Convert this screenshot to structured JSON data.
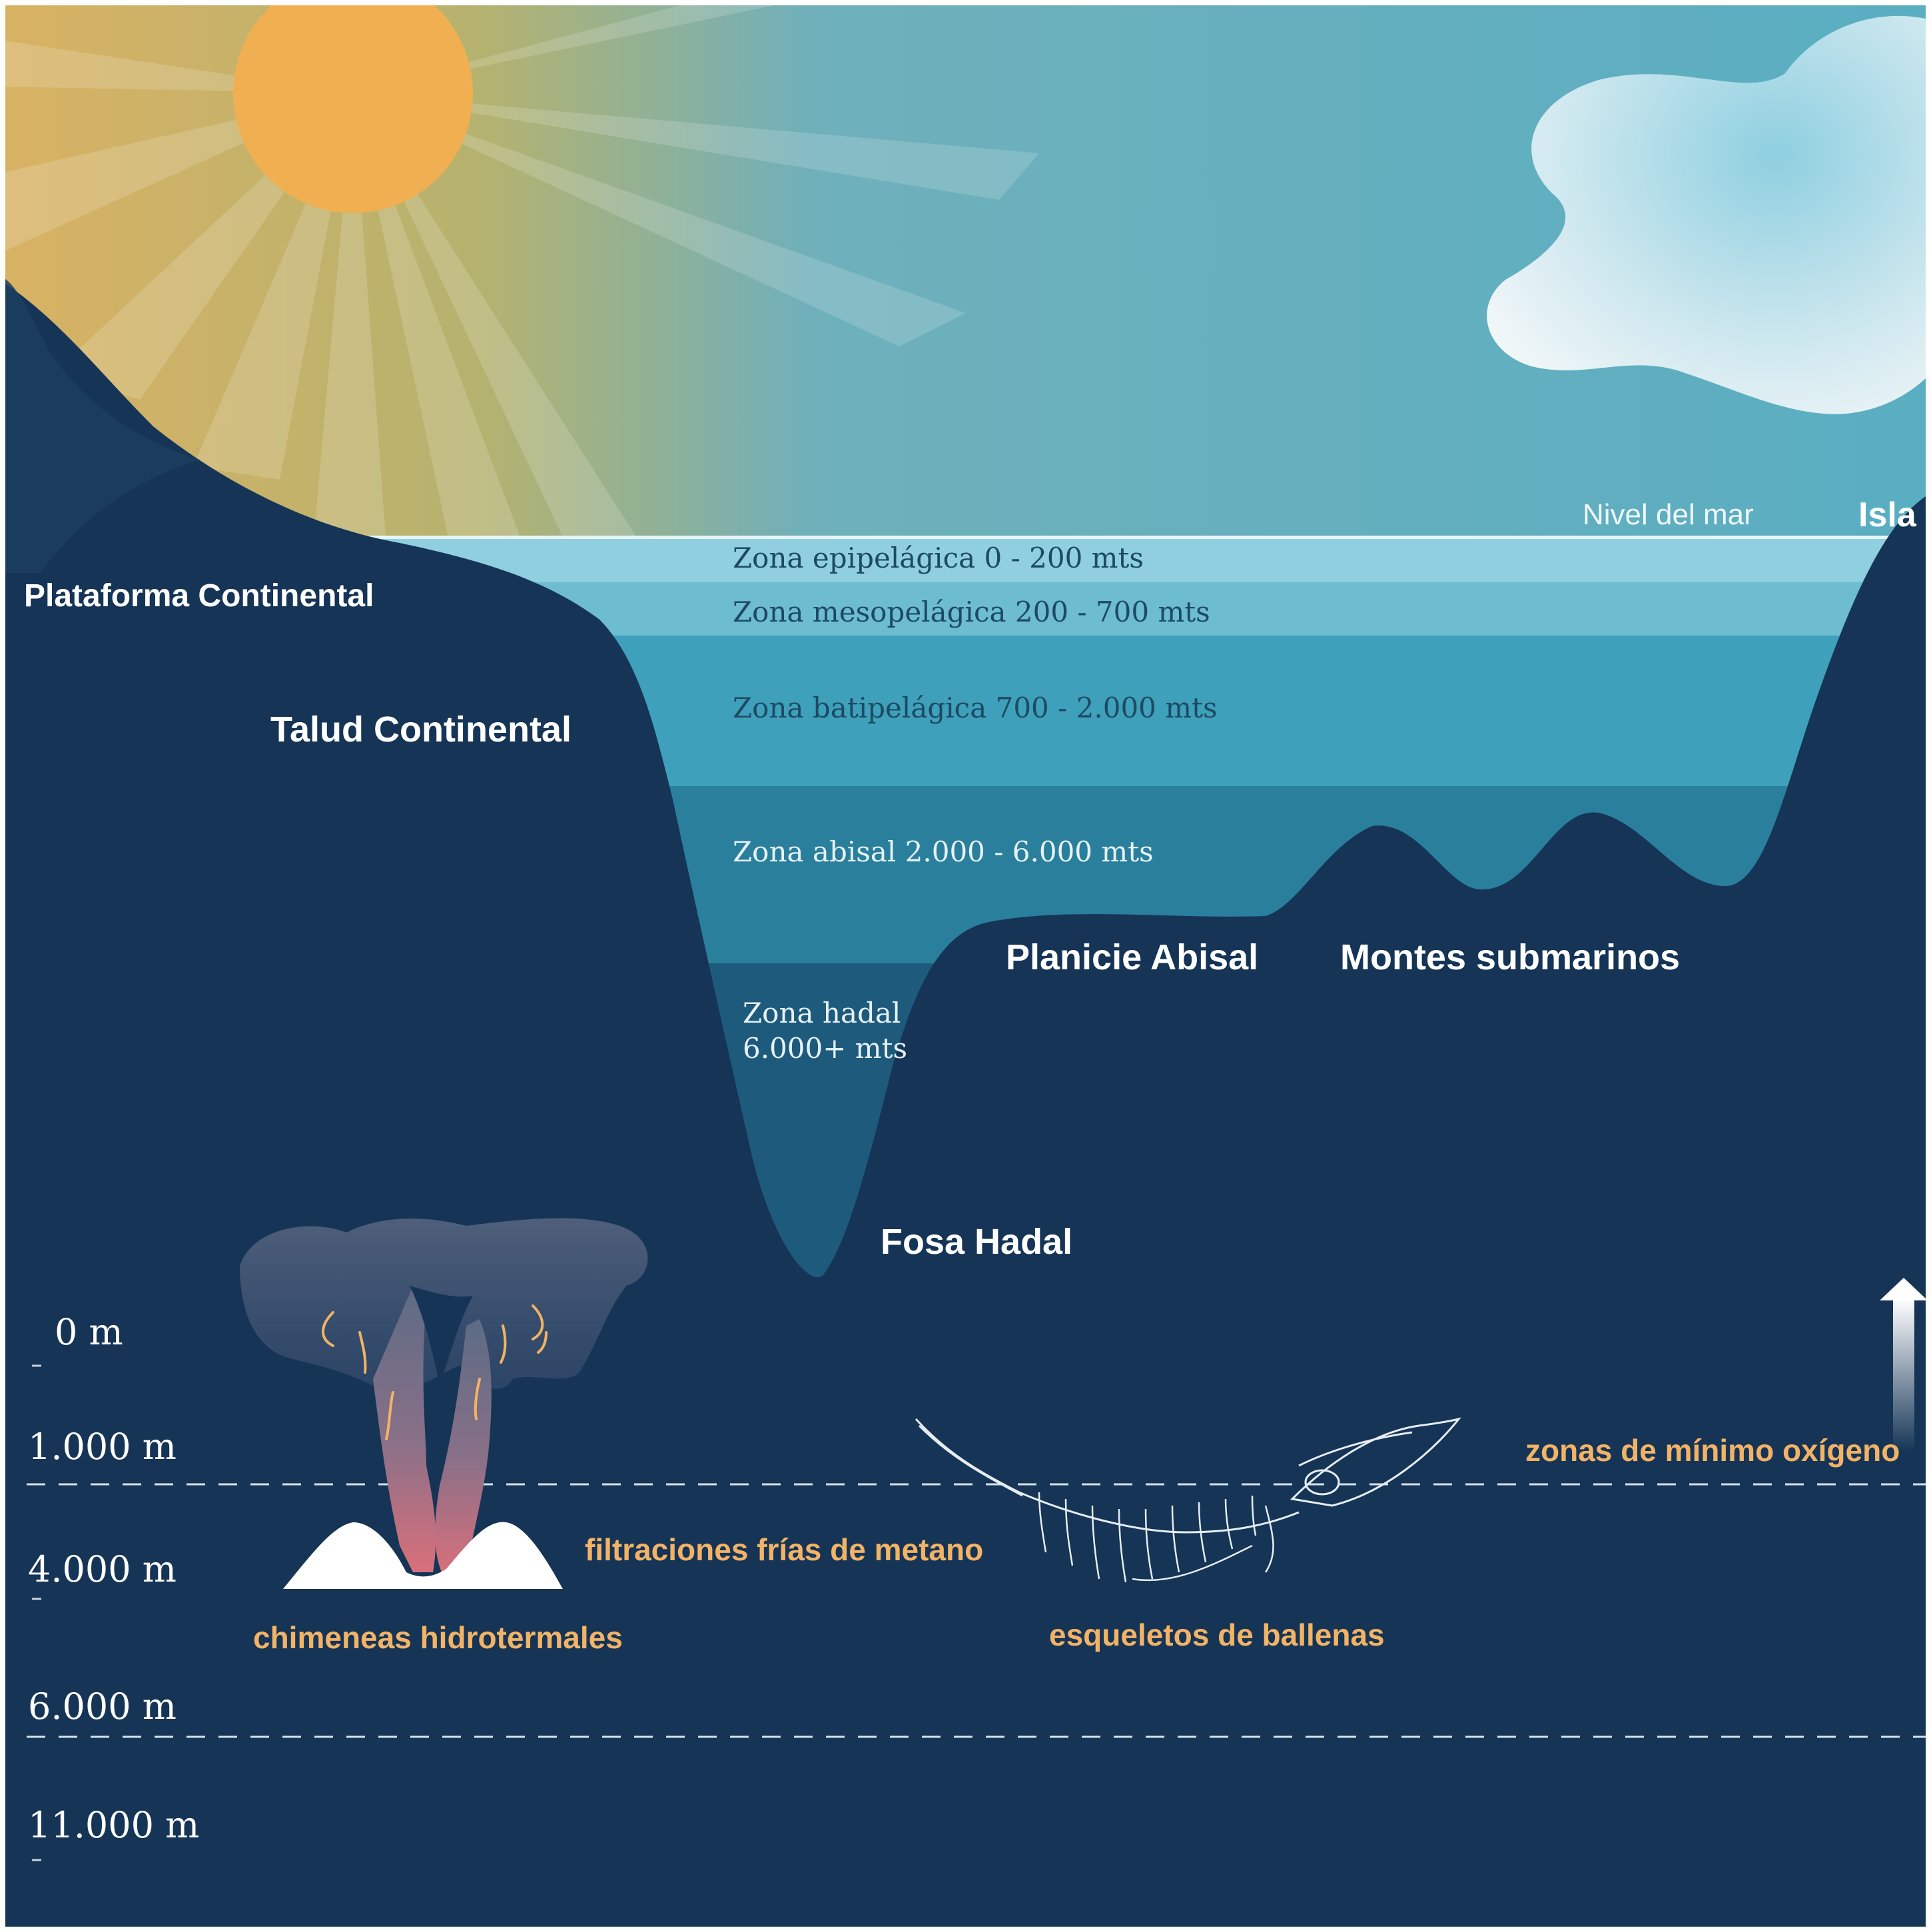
{
  "colors": {
    "sky": "#5fb0c2",
    "deep": "#153456",
    "sun": "#f0b050",
    "accent_text": "#f2b366",
    "zone_epi": "#8fcfe0",
    "zone_meso": "#6dbcd0",
    "zone_bati": "#3ea0ba",
    "zone_abisal": "#2a7f9c",
    "zone_hadal": "#1e5a7c"
  },
  "labels": {
    "sea_level": "Nivel del mar",
    "island": "Isla",
    "continental_platform": "Plataforma Continental",
    "continental_slope": "Talud Continental",
    "abyssal_plain": "Planicie Abisal",
    "seamounts": "Montes submarinos",
    "hadal_trench": "Fosa Hadal"
  },
  "zones": {
    "epipelagic": "Zona epipelágica 0 - 200 mts",
    "mesopelagic": "Zona mesopelágica 200 - 700 mts",
    "bathypelagic": "Zona batipelágica 700 - 2.000 mts",
    "abyssal": "Zona abisal 2.000 - 6.000 mts",
    "hadal_line1": "Zona hadal",
    "hadal_line2": "6.000+ mts"
  },
  "depth_scale": [
    "0 m",
    "1.000 m",
    "4.000 m",
    "6.000 m",
    "11.000 m"
  ],
  "features": {
    "min_oxygen": "zonas de mínimo oxígeno",
    "methane_seeps": "filtraciones frías de metano",
    "hydrothermal_vents": "chimeneas hidrotermales",
    "whale_skeletons": "esqueletos de ballenas"
  },
  "icons": [
    "sun-icon",
    "cloud-icon",
    "hydrothermal-vent-icon",
    "whale-skeleton-icon",
    "up-arrow-icon"
  ]
}
